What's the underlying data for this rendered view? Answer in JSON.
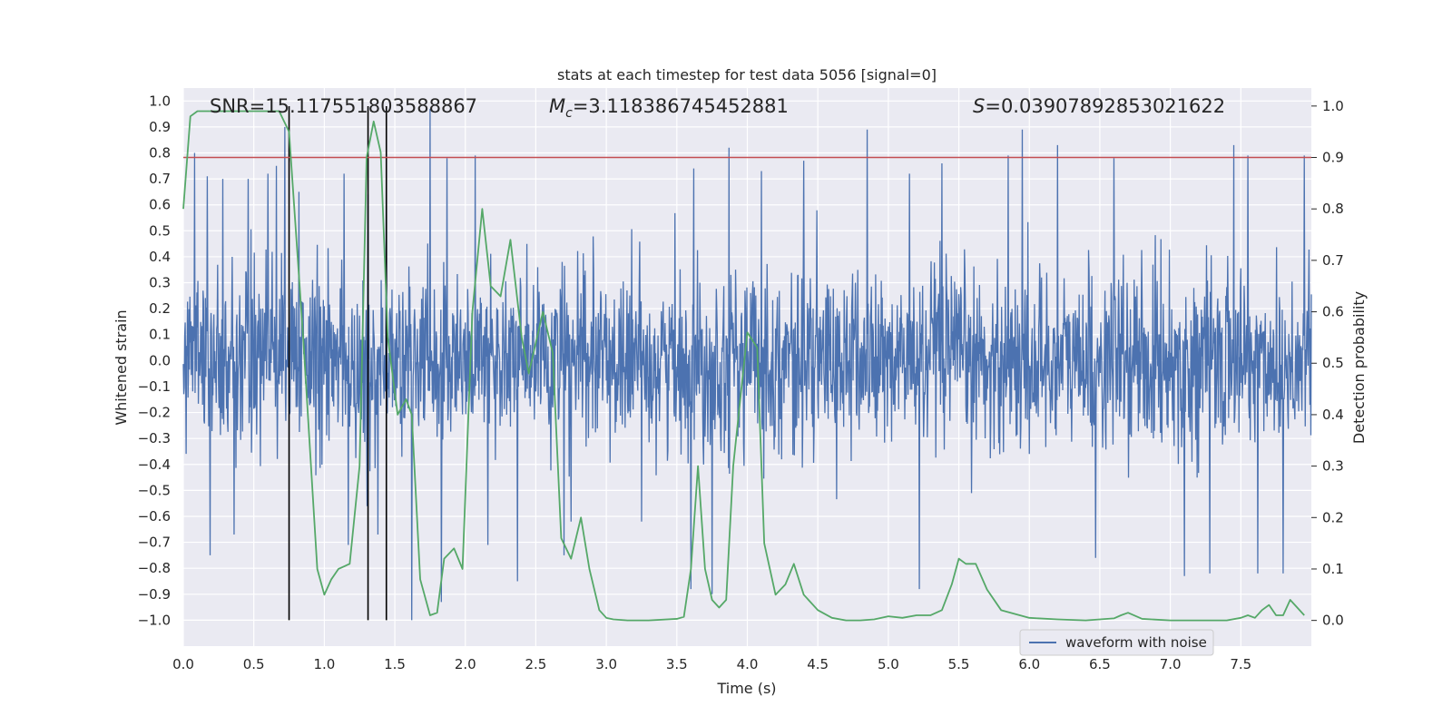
{
  "chart_data": {
    "type": "line",
    "title": "stats at each timestep for test data 5056 [signal=0]",
    "xlabel": "Time (s)",
    "ylabel_left": "Whitened strain",
    "ylabel_right": "Detection probability",
    "xlim": [
      0.0,
      8.0
    ],
    "ylim_left": [
      -1.1,
      1.05
    ],
    "ylim_right": [
      -0.05,
      1.035
    ],
    "x_ticks": [
      "0.0",
      "0.5",
      "1.0",
      "1.5",
      "2.0",
      "2.5",
      "3.0",
      "3.5",
      "4.0",
      "4.5",
      "5.0",
      "5.5",
      "6.0",
      "6.5",
      "7.0",
      "7.5"
    ],
    "y_left_ticks": [
      "1.0",
      "0.9",
      "0.8",
      "0.7",
      "0.6",
      "0.5",
      "0.4",
      "0.3",
      "0.2",
      "0.1",
      "0.0",
      "-0.1",
      "-0.2",
      "-0.3",
      "-0.4",
      "-0.5",
      "-0.6",
      "-0.7",
      "-0.8",
      "-0.9",
      "-1.0"
    ],
    "y_right_ticks": [
      "1.0",
      "0.9",
      "0.8",
      "0.7",
      "0.6",
      "0.5",
      "0.4",
      "0.3",
      "0.2",
      "0.1",
      "0.0"
    ],
    "annotations": {
      "snr": "SNR=15.117551803588867",
      "mc_symbol": "M",
      "mc_sub": "c",
      "mc_value": "=3.118386745452881",
      "s_symbol": "S",
      "s_value": "=0.03907892853021622"
    },
    "threshold_right": 0.9,
    "vertical_lines_s": [
      0.75,
      1.31,
      1.44
    ],
    "vertical_line_range_left": [
      -1.0,
      0.98
    ],
    "series": [
      {
        "name": "waveform with noise",
        "axis": "left",
        "color": "#4c72b0",
        "description": "whitened strain noise, approx. within [-1.0, 1.0], dense samples",
        "samples_per_s": 300,
        "envelope_sigma": 0.17,
        "spikes": [
          {
            "t": 0.08,
            "v": 0.8
          },
          {
            "t": 0.17,
            "v": 0.71
          },
          {
            "t": 0.19,
            "v": -0.75
          },
          {
            "t": 0.28,
            "v": 0.7
          },
          {
            "t": 0.36,
            "v": -0.67
          },
          {
            "t": 0.46,
            "v": 0.7
          },
          {
            "t": 0.6,
            "v": 0.72
          },
          {
            "t": 0.66,
            "v": 0.75
          },
          {
            "t": 0.72,
            "v": 0.9
          },
          {
            "t": 0.82,
            "v": 0.65
          },
          {
            "t": 1.14,
            "v": 0.72
          },
          {
            "t": 1.17,
            "v": -0.71
          },
          {
            "t": 1.31,
            "v": 0.64
          },
          {
            "t": 1.38,
            "v": -0.67
          },
          {
            "t": 1.44,
            "v": 0.77
          },
          {
            "t": 1.62,
            "v": -1.0
          },
          {
            "t": 1.75,
            "v": 0.97
          },
          {
            "t": 1.83,
            "v": -0.93
          },
          {
            "t": 1.87,
            "v": 0.78
          },
          {
            "t": 2.07,
            "v": 0.79
          },
          {
            "t": 2.16,
            "v": -0.71
          },
          {
            "t": 2.37,
            "v": -0.85
          },
          {
            "t": 2.7,
            "v": -0.75
          },
          {
            "t": 2.75,
            "v": -0.62
          },
          {
            "t": 3.6,
            "v": -0.88
          },
          {
            "t": 3.62,
            "v": 0.74
          },
          {
            "t": 3.75,
            "v": -0.9
          },
          {
            "t": 3.87,
            "v": 0.82
          },
          {
            "t": 4.1,
            "v": 0.73
          },
          {
            "t": 4.4,
            "v": 0.77
          },
          {
            "t": 4.85,
            "v": 0.89
          },
          {
            "t": 5.15,
            "v": 0.72
          },
          {
            "t": 5.22,
            "v": -0.88
          },
          {
            "t": 5.38,
            "v": 0.76
          },
          {
            "t": 5.85,
            "v": 0.79
          },
          {
            "t": 5.95,
            "v": 0.89
          },
          {
            "t": 6.2,
            "v": 0.83
          },
          {
            "t": 6.47,
            "v": -0.76
          },
          {
            "t": 6.6,
            "v": 0.78
          },
          {
            "t": 7.1,
            "v": -0.83
          },
          {
            "t": 7.28,
            "v": -0.82
          },
          {
            "t": 7.45,
            "v": 0.83
          },
          {
            "t": 7.55,
            "v": 0.79
          },
          {
            "t": 7.62,
            "v": -0.82
          },
          {
            "t": 7.8,
            "v": -0.82
          },
          {
            "t": 7.95,
            "v": 0.79
          }
        ]
      },
      {
        "name": "detection probability",
        "axis": "right",
        "color": "#55a868",
        "x": [
          0.0,
          0.05,
          0.1,
          0.2,
          0.3,
          0.4,
          0.5,
          0.6,
          0.68,
          0.75,
          0.8,
          0.85,
          0.95,
          1.0,
          1.05,
          1.1,
          1.18,
          1.25,
          1.3,
          1.35,
          1.4,
          1.45,
          1.52,
          1.58,
          1.62,
          1.68,
          1.75,
          1.8,
          1.85,
          1.92,
          1.98,
          2.05,
          2.12,
          2.18,
          2.25,
          2.32,
          2.4,
          2.45,
          2.55,
          2.62,
          2.68,
          2.75,
          2.82,
          2.88,
          2.95,
          3.0,
          3.05,
          3.15,
          3.3,
          3.5,
          3.55,
          3.6,
          3.65,
          3.7,
          3.75,
          3.8,
          3.85,
          3.9,
          4.0,
          4.07,
          4.12,
          4.2,
          4.27,
          4.33,
          4.4,
          4.5,
          4.6,
          4.7,
          4.8,
          4.9,
          5.0,
          5.1,
          5.2,
          5.3,
          5.38,
          5.45,
          5.5,
          5.55,
          5.62,
          5.7,
          5.8,
          6.0,
          6.2,
          6.4,
          6.5,
          6.6,
          6.65,
          6.7,
          6.8,
          7.0,
          7.2,
          7.4,
          7.5,
          7.55,
          7.6,
          7.65,
          7.7,
          7.75,
          7.8,
          7.85,
          7.9,
          7.95
        ],
        "values": [
          0.8,
          0.98,
          0.99,
          0.99,
          0.99,
          0.99,
          0.99,
          0.99,
          0.99,
          0.95,
          0.75,
          0.55,
          0.1,
          0.05,
          0.08,
          0.1,
          0.11,
          0.3,
          0.9,
          0.97,
          0.91,
          0.55,
          0.4,
          0.43,
          0.4,
          0.08,
          0.01,
          0.015,
          0.12,
          0.14,
          0.1,
          0.6,
          0.8,
          0.65,
          0.63,
          0.74,
          0.55,
          0.48,
          0.6,
          0.52,
          0.16,
          0.12,
          0.2,
          0.1,
          0.02,
          0.005,
          0.002,
          0.0,
          0.0,
          0.003,
          0.007,
          0.1,
          0.3,
          0.1,
          0.04,
          0.025,
          0.04,
          0.3,
          0.56,
          0.53,
          0.15,
          0.05,
          0.07,
          0.11,
          0.05,
          0.02,
          0.005,
          0.0,
          0.0,
          0.002,
          0.008,
          0.005,
          0.01,
          0.01,
          0.02,
          0.07,
          0.12,
          0.11,
          0.11,
          0.06,
          0.02,
          0.005,
          0.002,
          0.0,
          0.002,
          0.004,
          0.01,
          0.015,
          0.003,
          0.0,
          0.0,
          0.0,
          0.005,
          0.01,
          0.005,
          0.02,
          0.03,
          0.01,
          0.01,
          0.04,
          0.025,
          0.01
        ]
      }
    ],
    "legend": {
      "placement": "lower-right",
      "entries": [
        "waveform with noise"
      ]
    }
  }
}
